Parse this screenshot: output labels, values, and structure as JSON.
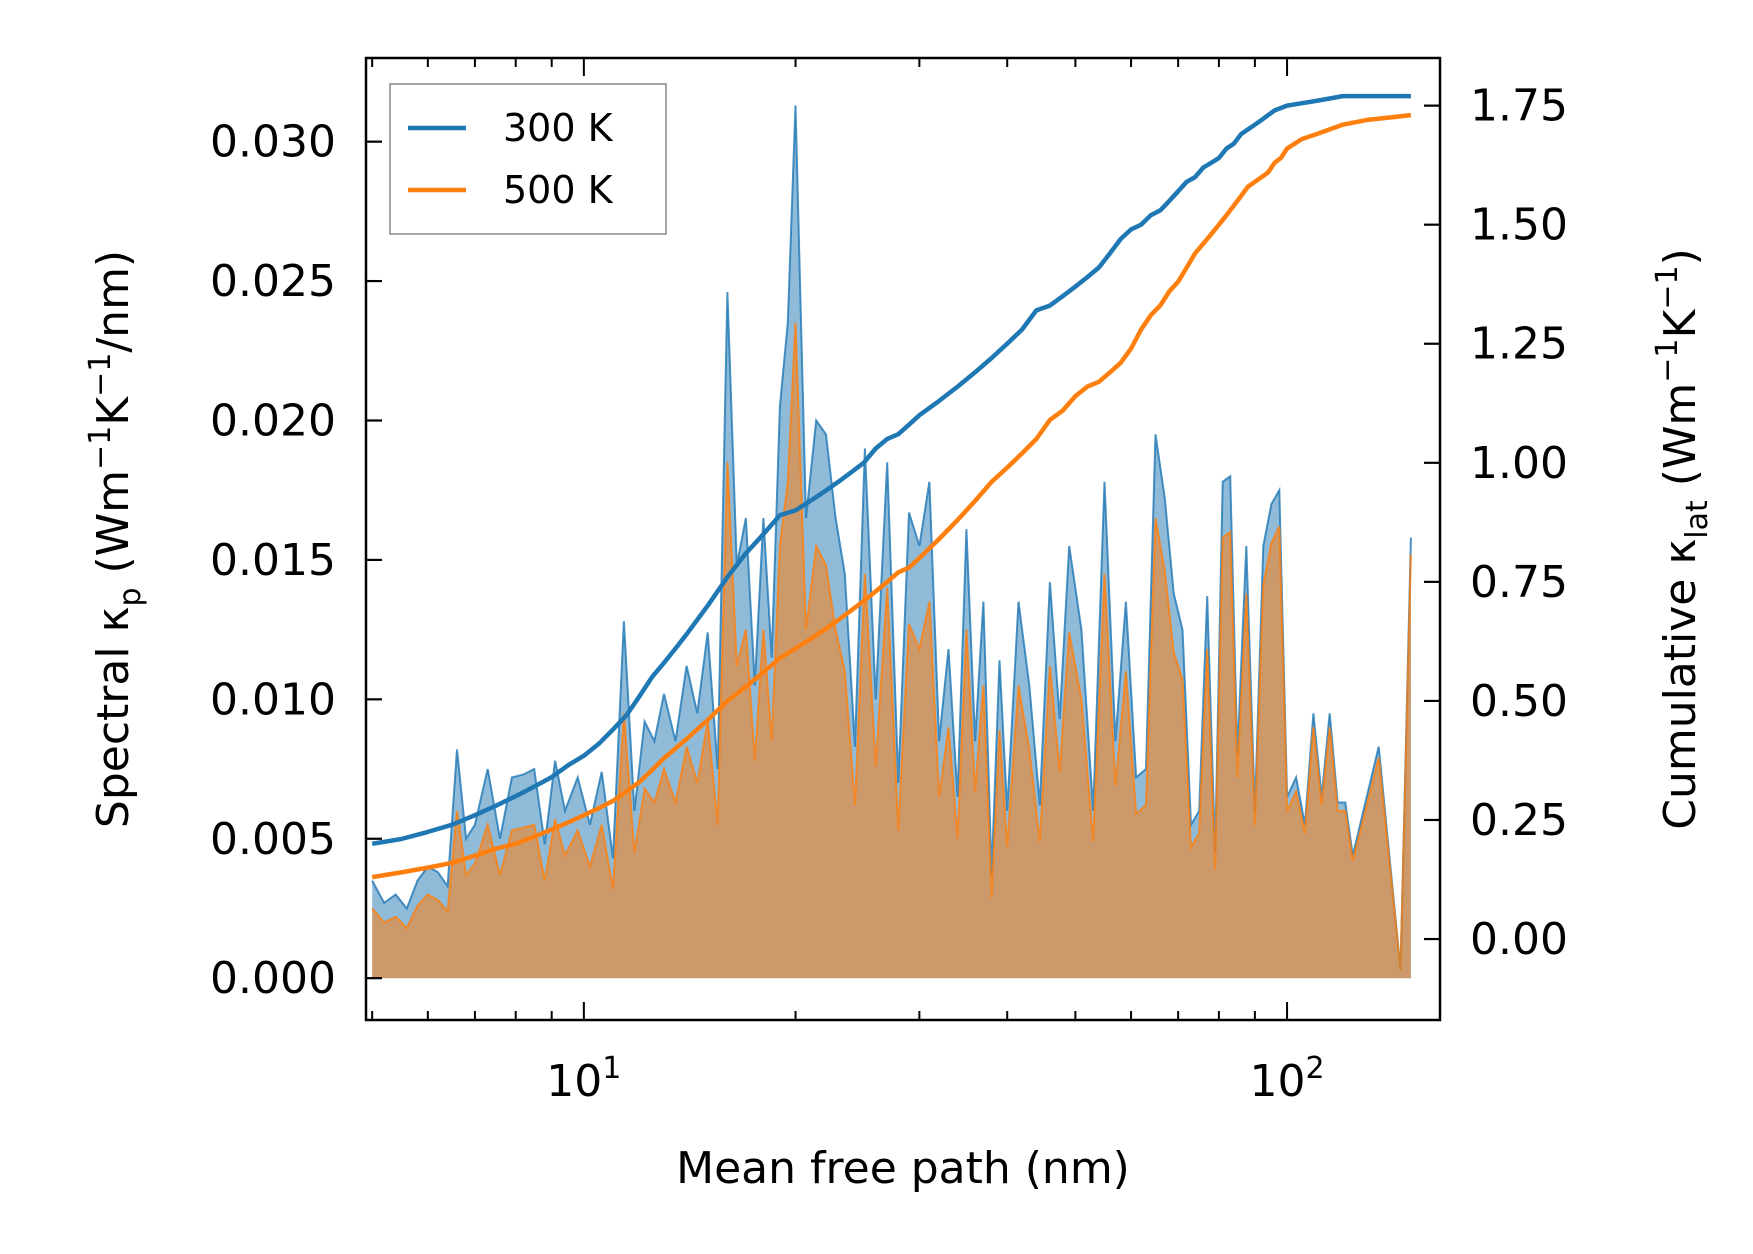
{
  "chart_data": {
    "type": "line",
    "xlabel": "Mean free path (nm)",
    "xscale": "log",
    "xlim": [
      4.9,
      165
    ],
    "x_ticks": [
      {
        "value": 10,
        "label": "10",
        "exp": "1"
      },
      {
        "value": 100,
        "label": "10",
        "exp": "2"
      }
    ],
    "y_left": {
      "label_main": "Spectral κ",
      "label_sub": "p",
      "label_unit": " (Wm",
      "label_sup1": "−1",
      "label_mid": "K",
      "label_sup2": "−1",
      "label_end": "/nm)",
      "lim": [
        -0.0015,
        0.033
      ],
      "ticks": [
        0.0,
        0.005,
        0.01,
        0.015,
        0.02,
        0.025,
        0.03
      ],
      "tick_labels": [
        "0.000",
        "0.005",
        "0.010",
        "0.015",
        "0.020",
        "0.025",
        "0.030"
      ]
    },
    "y_right": {
      "label_main": "Cumulative κ",
      "label_sub": "lat",
      "label_unit": " (Wm",
      "label_sup1": "−1",
      "label_mid": "K",
      "label_sup2": "−1",
      "label_end": ")",
      "lim": [
        -0.17,
        1.85
      ],
      "ticks": [
        0.0,
        0.25,
        0.5,
        0.75,
        1.0,
        1.25,
        1.5,
        1.75
      ],
      "tick_labels": [
        "0.00",
        "0.25",
        "0.50",
        "0.75",
        "1.00",
        "1.25",
        "1.50",
        "1.75"
      ]
    },
    "legend": {
      "position": "top-left",
      "entries": [
        "300 K",
        "500 K"
      ]
    },
    "series": [
      {
        "name": "300 K",
        "color": "#1f77b4",
        "spectral": {
          "x": [
            5.0,
            5.2,
            5.4,
            5.6,
            5.8,
            6.0,
            6.2,
            6.4,
            6.6,
            6.8,
            7.0,
            7.3,
            7.6,
            7.9,
            8.2,
            8.5,
            8.8,
            9.1,
            9.4,
            9.8,
            10.2,
            10.6,
            11.0,
            11.4,
            11.8,
            12.2,
            12.6,
            13.0,
            13.5,
            14.0,
            14.5,
            15.0,
            15.5,
            16.0,
            16.5,
            17.0,
            17.5,
            18.0,
            18.5,
            19.0,
            19.5,
            20.0,
            20.7,
            21.4,
            22.1,
            22.8,
            23.5,
            24.3,
            25.1,
            26.0,
            27.0,
            28.0,
            29.0,
            30.0,
            31.0,
            32.0,
            33.0,
            34.0,
            35.0,
            36.0,
            37.0,
            38.0,
            39.0,
            40.0,
            41.5,
            43.0,
            44.5,
            46.0,
            47.5,
            49.0,
            51.0,
            53.0,
            55.0,
            57.0,
            59.0,
            61.0,
            63.0,
            65.0,
            67.0,
            69.0,
            71.0,
            73.0,
            75.0,
            77.0,
            79.0,
            81.0,
            83.0,
            85.0,
            87.5,
            90.0,
            92.5,
            95.0,
            97.5,
            100.0,
            103.0,
            106.0,
            109.0,
            112.0,
            115.0,
            118.0,
            121.0,
            124.0,
            135.0,
            145.0,
            150.0
          ],
          "values": [
            0.0035,
            0.0027,
            0.003,
            0.0025,
            0.0035,
            0.004,
            0.0038,
            0.0033,
            0.0082,
            0.005,
            0.0055,
            0.0075,
            0.005,
            0.0072,
            0.0073,
            0.0075,
            0.0048,
            0.0078,
            0.006,
            0.0072,
            0.0055,
            0.0074,
            0.0043,
            0.0128,
            0.006,
            0.0092,
            0.0085,
            0.0102,
            0.0085,
            0.0112,
            0.0095,
            0.0124,
            0.0075,
            0.0246,
            0.0148,
            0.0165,
            0.0105,
            0.0165,
            0.0115,
            0.0205,
            0.0235,
            0.0313,
            0.0165,
            0.02,
            0.0195,
            0.0165,
            0.0145,
            0.0083,
            0.019,
            0.01,
            0.0185,
            0.007,
            0.0167,
            0.0155,
            0.0178,
            0.0085,
            0.0118,
            0.0065,
            0.0161,
            0.0085,
            0.0135,
            0.0037,
            0.0114,
            0.006,
            0.0135,
            0.0105,
            0.0062,
            0.0142,
            0.0093,
            0.0155,
            0.0125,
            0.006,
            0.0178,
            0.0085,
            0.0135,
            0.0072,
            0.0075,
            0.0195,
            0.0172,
            0.0138,
            0.0125,
            0.0055,
            0.006,
            0.0137,
            0.0045,
            0.0178,
            0.018,
            0.008,
            0.0155,
            0.006,
            0.0155,
            0.017,
            0.0175,
            0.0065,
            0.0072,
            0.0055,
            0.0095,
            0.0065,
            0.0095,
            0.0063,
            0.0063,
            0.0044,
            0.0083,
            0.0003,
            0.0158
          ],
          "line_values": [
            0.0035,
            0.0027,
            0.003,
            0.0025,
            0.0035,
            0.004,
            0.0038,
            0.0033,
            0.0082,
            0.005,
            0.0055,
            0.0075,
            0.005,
            0.0072,
            0.0073,
            0.0075,
            0.0048,
            0.0078,
            0.006,
            0.0072,
            0.0055,
            0.0074,
            0.0043,
            0.0128,
            0.006,
            0.0092,
            0.0085,
            0.0102,
            0.0085,
            0.0112,
            0.0095,
            0.0124,
            0.0075,
            0.0246,
            0.0148,
            0.0165,
            0.0105,
            0.0165,
            0.0115,
            0.0205,
            0.0235,
            0.0313,
            0.0165,
            0.02,
            0.0195,
            0.0165,
            0.0145,
            0.0083,
            0.019,
            0.01,
            0.0185,
            0.007,
            0.0167,
            0.0155,
            0.0178,
            0.0085,
            0.0118,
            0.0065,
            0.0161,
            0.0085,
            0.0135,
            0.0037,
            0.0114,
            0.006,
            0.0135,
            0.0105,
            0.0062,
            0.0142,
            0.0093,
            0.0155,
            0.0125,
            0.006,
            0.0178,
            0.0085,
            0.0135,
            0.0072,
            0.0075,
            0.0195,
            0.0172,
            0.0138,
            0.0125,
            0.0055,
            0.006,
            0.0137,
            0.0045,
            0.0178,
            0.018,
            0.008,
            0.0155,
            0.006,
            0.0155,
            0.017,
            0.0175,
            0.0065,
            0.0072,
            0.0055,
            0.0095,
            0.0065,
            0.0095,
            0.0063,
            0.0063,
            0.0044,
            0.0083,
            0.0003,
            0.0158
          ]
        },
        "cumulative": {
          "x": [
            5.0,
            5.5,
            6.0,
            6.5,
            7.0,
            7.5,
            8.0,
            8.5,
            9.0,
            9.5,
            10.0,
            10.5,
            11.0,
            11.5,
            12.0,
            12.5,
            13.0,
            13.5,
            14.0,
            15.0,
            16.0,
            17.0,
            18.0,
            19.0,
            20.0,
            21.0,
            22.0,
            23.0,
            24.0,
            25.0,
            26.0,
            27.0,
            28.0,
            29.0,
            30.0,
            32.0,
            34.0,
            36.0,
            38.0,
            40.0,
            42.0,
            44.0,
            46.0,
            48.0,
            50.0,
            52.0,
            54.0,
            56.0,
            58.0,
            60.0,
            62.0,
            64.0,
            66.0,
            68.0,
            70.0,
            72.0,
            74.0,
            76.0,
            78.0,
            80.0,
            82.0,
            84.0,
            86.0,
            88.0,
            90.0,
            92.0,
            94.0,
            96.0,
            98.0,
            100.0,
            105.0,
            110.0,
            115.0,
            120.0,
            130.0,
            140.0,
            150.0
          ],
          "values": [
            0.2,
            0.21,
            0.225,
            0.24,
            0.26,
            0.28,
            0.3,
            0.32,
            0.34,
            0.365,
            0.385,
            0.41,
            0.44,
            0.47,
            0.51,
            0.55,
            0.58,
            0.61,
            0.64,
            0.7,
            0.76,
            0.81,
            0.85,
            0.89,
            0.9,
            0.92,
            0.94,
            0.96,
            0.98,
            1.0,
            1.03,
            1.05,
            1.06,
            1.08,
            1.1,
            1.13,
            1.16,
            1.19,
            1.22,
            1.25,
            1.28,
            1.32,
            1.33,
            1.35,
            1.37,
            1.39,
            1.41,
            1.44,
            1.47,
            1.49,
            1.5,
            1.52,
            1.53,
            1.55,
            1.57,
            1.59,
            1.6,
            1.62,
            1.63,
            1.64,
            1.66,
            1.67,
            1.69,
            1.7,
            1.71,
            1.72,
            1.73,
            1.74,
            1.745,
            1.75,
            1.755,
            1.76,
            1.765,
            1.77,
            1.77,
            1.77,
            1.77
          ]
        }
      },
      {
        "name": "500 K",
        "color": "#ff7f0e",
        "spectral": {
          "x": [
            5.0,
            5.2,
            5.4,
            5.6,
            5.8,
            6.0,
            6.2,
            6.4,
            6.6,
            6.8,
            7.0,
            7.3,
            7.6,
            7.9,
            8.2,
            8.5,
            8.8,
            9.1,
            9.4,
            9.8,
            10.2,
            10.6,
            11.0,
            11.4,
            11.8,
            12.2,
            12.6,
            13.0,
            13.5,
            14.0,
            14.5,
            15.0,
            15.5,
            16.0,
            16.5,
            17.0,
            17.5,
            18.0,
            18.5,
            19.0,
            19.5,
            20.0,
            20.7,
            21.4,
            22.1,
            22.8,
            23.5,
            24.3,
            25.1,
            26.0,
            27.0,
            28.0,
            29.0,
            30.0,
            31.0,
            32.0,
            33.0,
            34.0,
            35.0,
            36.0,
            37.0,
            38.0,
            39.0,
            40.0,
            41.5,
            43.0,
            44.5,
            46.0,
            47.5,
            49.0,
            51.0,
            53.0,
            55.0,
            57.0,
            59.0,
            61.0,
            63.0,
            65.0,
            67.0,
            69.0,
            71.0,
            73.0,
            75.0,
            77.0,
            79.0,
            81.0,
            83.0,
            85.0,
            87.5,
            90.0,
            92.5,
            95.0,
            97.5,
            100.0,
            103.0,
            106.0,
            109.0,
            112.0,
            115.0,
            118.0,
            121.0,
            124.0,
            135.0,
            145.0,
            150.0
          ],
          "values": [
            0.0025,
            0.002,
            0.0022,
            0.0018,
            0.0026,
            0.003,
            0.0028,
            0.0024,
            0.006,
            0.0037,
            0.0041,
            0.0055,
            0.0037,
            0.0053,
            0.0054,
            0.0055,
            0.0035,
            0.0057,
            0.0044,
            0.0053,
            0.004,
            0.0055,
            0.0032,
            0.0095,
            0.0045,
            0.0068,
            0.0063,
            0.0075,
            0.0063,
            0.0083,
            0.007,
            0.0092,
            0.0055,
            0.0185,
            0.0112,
            0.0125,
            0.0078,
            0.0125,
            0.0085,
            0.0155,
            0.0178,
            0.0235,
            0.0125,
            0.0155,
            0.0148,
            0.0125,
            0.011,
            0.0062,
            0.0145,
            0.0076,
            0.014,
            0.0053,
            0.0127,
            0.0118,
            0.0135,
            0.0065,
            0.009,
            0.005,
            0.0125,
            0.0067,
            0.0105,
            0.0029,
            0.0089,
            0.0047,
            0.0105,
            0.0082,
            0.0049,
            0.0112,
            0.0074,
            0.0124,
            0.01,
            0.0049,
            0.0145,
            0.0069,
            0.011,
            0.0059,
            0.0062,
            0.0165,
            0.0146,
            0.0117,
            0.0107,
            0.0047,
            0.0052,
            0.0118,
            0.0039,
            0.0158,
            0.016,
            0.0072,
            0.0138,
            0.0055,
            0.0141,
            0.0156,
            0.0162,
            0.006,
            0.0067,
            0.0052,
            0.009,
            0.0062,
            0.009,
            0.006,
            0.006,
            0.0042,
            0.0079,
            0.0003,
            0.0152
          ],
          "line_values": [
            0.0025,
            0.002,
            0.0022,
            0.0018,
            0.0026,
            0.003,
            0.0028,
            0.0024,
            0.006,
            0.0037,
            0.0041,
            0.0055,
            0.0037,
            0.0053,
            0.0054,
            0.0055,
            0.0035,
            0.0057,
            0.0044,
            0.0053,
            0.004,
            0.0055,
            0.0032,
            0.0095,
            0.0045,
            0.0068,
            0.0063,
            0.0075,
            0.0063,
            0.0083,
            0.007,
            0.0092,
            0.0055,
            0.0185,
            0.0112,
            0.0125,
            0.0078,
            0.0125,
            0.0085,
            0.0155,
            0.0178,
            0.0235,
            0.0125,
            0.0155,
            0.0148,
            0.0125,
            0.011,
            0.0062,
            0.0145,
            0.0076,
            0.014,
            0.0053,
            0.0127,
            0.0118,
            0.0135,
            0.0065,
            0.009,
            0.005,
            0.0125,
            0.0067,
            0.0105,
            0.0029,
            0.0089,
            0.0047,
            0.0105,
            0.0082,
            0.0049,
            0.0112,
            0.0074,
            0.0124,
            0.01,
            0.0049,
            0.0145,
            0.0069,
            0.011,
            0.0059,
            0.0062,
            0.0165,
            0.0146,
            0.0117,
            0.0107,
            0.0047,
            0.0052,
            0.0118,
            0.0039,
            0.0158,
            0.016,
            0.0072,
            0.0138,
            0.0055,
            0.0141,
            0.0156,
            0.0162,
            0.006,
            0.0067,
            0.0052,
            0.009,
            0.0062,
            0.009,
            0.006,
            0.006,
            0.0042,
            0.0079,
            0.0003,
            0.0152
          ]
        },
        "cumulative": {
          "x": [
            5.0,
            5.5,
            6.0,
            6.5,
            7.0,
            7.5,
            8.0,
            8.5,
            9.0,
            9.5,
            10.0,
            10.5,
            11.0,
            11.5,
            12.0,
            12.5,
            13.0,
            13.5,
            14.0,
            15.0,
            16.0,
            17.0,
            18.0,
            19.0,
            20.0,
            21.0,
            22.0,
            23.0,
            24.0,
            25.0,
            26.0,
            27.0,
            28.0,
            29.0,
            30.0,
            32.0,
            34.0,
            36.0,
            38.0,
            40.0,
            42.0,
            44.0,
            46.0,
            48.0,
            50.0,
            52.0,
            54.0,
            56.0,
            58.0,
            60.0,
            62.0,
            64.0,
            66.0,
            68.0,
            70.0,
            72.0,
            74.0,
            76.0,
            78.0,
            80.0,
            82.0,
            84.0,
            86.0,
            88.0,
            90.0,
            92.0,
            94.0,
            96.0,
            98.0,
            100.0,
            105.0,
            110.0,
            115.0,
            120.0,
            130.0,
            140.0,
            150.0
          ],
          "values": [
            0.13,
            0.14,
            0.15,
            0.16,
            0.175,
            0.19,
            0.2,
            0.215,
            0.23,
            0.245,
            0.26,
            0.275,
            0.29,
            0.31,
            0.33,
            0.355,
            0.38,
            0.4,
            0.42,
            0.46,
            0.5,
            0.53,
            0.56,
            0.59,
            0.61,
            0.63,
            0.65,
            0.67,
            0.69,
            0.71,
            0.73,
            0.75,
            0.77,
            0.78,
            0.8,
            0.84,
            0.88,
            0.92,
            0.96,
            0.99,
            1.02,
            1.05,
            1.09,
            1.11,
            1.14,
            1.16,
            1.17,
            1.19,
            1.21,
            1.24,
            1.28,
            1.31,
            1.33,
            1.36,
            1.38,
            1.41,
            1.44,
            1.46,
            1.48,
            1.5,
            1.52,
            1.54,
            1.56,
            1.58,
            1.59,
            1.6,
            1.61,
            1.63,
            1.64,
            1.66,
            1.68,
            1.69,
            1.7,
            1.71,
            1.72,
            1.725,
            1.73
          ]
        }
      }
    ]
  }
}
